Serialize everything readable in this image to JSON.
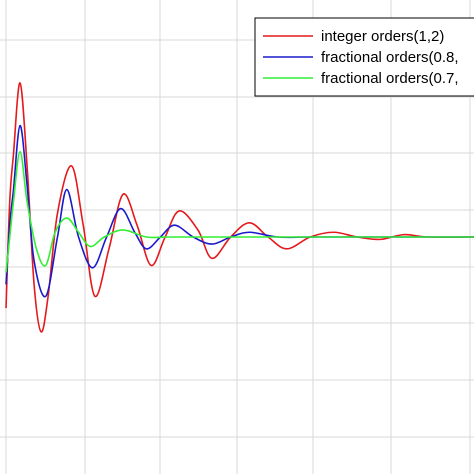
{
  "chart_data": {
    "type": "line",
    "title": "",
    "xlabel": "",
    "ylabel": "",
    "grid": true,
    "legend_position": "top-right",
    "xlim": [
      0,
      1
    ],
    "ylim": [
      -1,
      1
    ],
    "colors": {
      "integer": "#e41a1c",
      "fractional_a": "#1a1acc",
      "fractional_b": "#33ee33"
    },
    "series": [
      {
        "name": "integer orders(1,2)",
        "color": "#e41a1c",
        "points": [
          [
            0.0,
            -0.3
          ],
          [
            0.008,
            0.15
          ],
          [
            0.016,
            0.35
          ],
          [
            0.03,
            0.65
          ],
          [
            0.045,
            0.3
          ],
          [
            0.06,
            -0.2
          ],
          [
            0.075,
            -0.4
          ],
          [
            0.09,
            -0.25
          ],
          [
            0.11,
            0.1
          ],
          [
            0.14,
            0.3
          ],
          [
            0.165,
            0.05
          ],
          [
            0.19,
            -0.25
          ],
          [
            0.22,
            -0.05
          ],
          [
            0.25,
            0.18
          ],
          [
            0.28,
            0.05
          ],
          [
            0.31,
            -0.12
          ],
          [
            0.34,
            0.0
          ],
          [
            0.37,
            0.11
          ],
          [
            0.41,
            0.03
          ],
          [
            0.44,
            -0.09
          ],
          [
            0.48,
            0.0
          ],
          [
            0.52,
            0.06
          ],
          [
            0.56,
            0.0
          ],
          [
            0.6,
            -0.05
          ],
          [
            0.65,
            0.0
          ],
          [
            0.7,
            0.02
          ],
          [
            0.75,
            0.0
          ],
          [
            0.8,
            -0.01
          ],
          [
            0.85,
            0.01
          ],
          [
            0.9,
            0.0
          ],
          [
            1.0,
            0.0
          ]
        ]
      },
      {
        "name": "fractional orders(0.8,",
        "color": "#1a1acc",
        "points": [
          [
            0.0,
            -0.2
          ],
          [
            0.008,
            0.05
          ],
          [
            0.016,
            0.2
          ],
          [
            0.03,
            0.47
          ],
          [
            0.045,
            0.22
          ],
          [
            0.06,
            -0.1
          ],
          [
            0.085,
            -0.25
          ],
          [
            0.11,
            0.0
          ],
          [
            0.13,
            0.2
          ],
          [
            0.155,
            0.0
          ],
          [
            0.185,
            -0.13
          ],
          [
            0.215,
            0.0
          ],
          [
            0.245,
            0.12
          ],
          [
            0.275,
            0.02
          ],
          [
            0.3,
            -0.05
          ],
          [
            0.33,
            0.0
          ],
          [
            0.36,
            0.05
          ],
          [
            0.4,
            0.0
          ],
          [
            0.44,
            -0.03
          ],
          [
            0.48,
            0.0
          ],
          [
            0.52,
            0.02
          ],
          [
            0.58,
            0.0
          ],
          [
            0.65,
            0.0
          ],
          [
            0.75,
            0.0
          ],
          [
            0.85,
            0.0
          ],
          [
            1.0,
            0.0
          ]
        ]
      },
      {
        "name": "fractional orders(0.7,",
        "color": "#33ee33",
        "points": [
          [
            0.0,
            -0.15
          ],
          [
            0.008,
            0.0
          ],
          [
            0.016,
            0.15
          ],
          [
            0.03,
            0.36
          ],
          [
            0.045,
            0.15
          ],
          [
            0.065,
            -0.05
          ],
          [
            0.085,
            -0.12
          ],
          [
            0.105,
            0.02
          ],
          [
            0.13,
            0.08
          ],
          [
            0.155,
            0.02
          ],
          [
            0.18,
            -0.04
          ],
          [
            0.21,
            0.0
          ],
          [
            0.25,
            0.03
          ],
          [
            0.3,
            0.0
          ],
          [
            0.35,
            0.0
          ],
          [
            0.45,
            0.0
          ],
          [
            0.55,
            0.0
          ],
          [
            0.7,
            0.0
          ],
          [
            0.85,
            0.0
          ],
          [
            1.0,
            0.0
          ]
        ]
      }
    ]
  }
}
